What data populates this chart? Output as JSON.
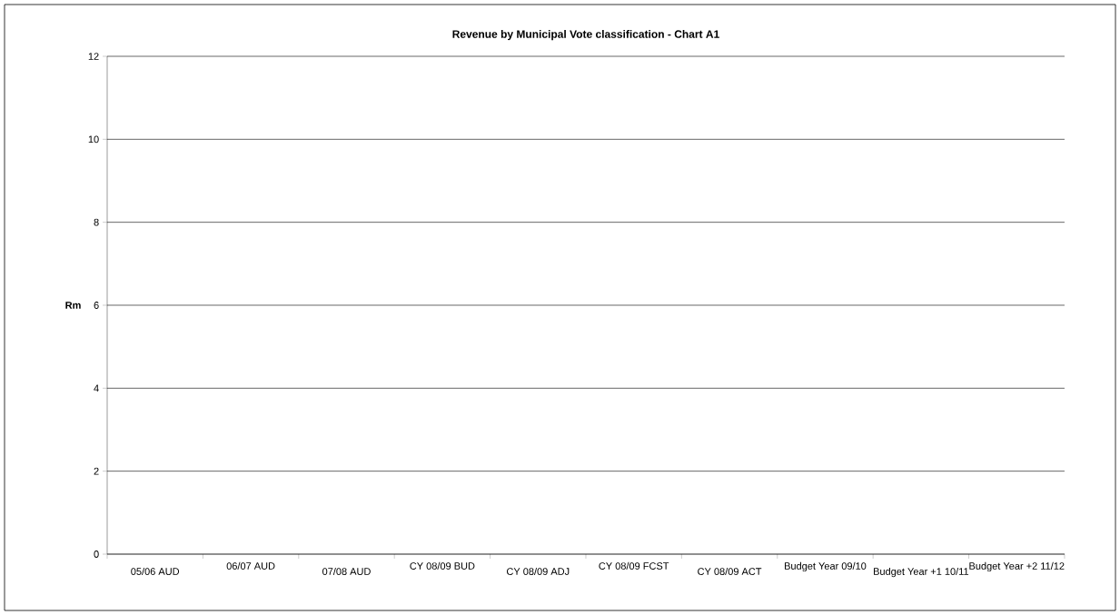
{
  "chart_data": {
    "type": "bar",
    "title": "Revenue by Municipal Vote classification - Chart A1",
    "ylabel": "Rm",
    "categories": [
      "05/06 AUD",
      "06/07 AUD",
      "07/08 AUD",
      "CY 08/09 BUD",
      "CY  08/09 ADJ",
      "CY 08/09 FCST",
      "CY 08/09 ACT",
      "Budget Year 09/10",
      "Budget Year +1 10/11",
      "Budget Year +2 11/12"
    ],
    "values": [
      null,
      null,
      null,
      null,
      null,
      null,
      null,
      null,
      null,
      null
    ],
    "ylim": [
      0,
      12
    ],
    "yticks": [
      0,
      2,
      4,
      6,
      8,
      10,
      12
    ],
    "grid": "y"
  }
}
